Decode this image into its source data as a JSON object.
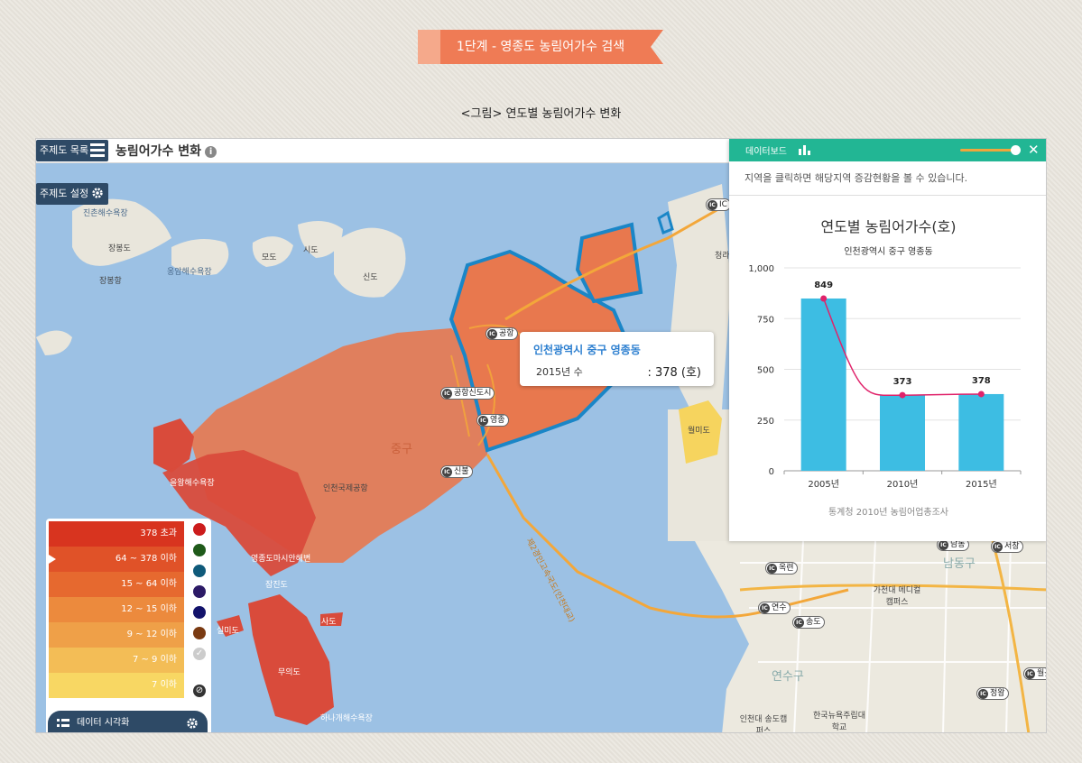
{
  "banner": {
    "label": "1단계 - 영종도 농림어가수 검색"
  },
  "figure_caption": "<그림> 연도별 농림어가수 변화",
  "toolbar": {
    "theme_list_label": "주제도 목록",
    "theme_settings_label": "주제도 설정",
    "map_title": "농림어가수 변화",
    "info_label": "i"
  },
  "map_labels": {
    "beach_jinchon": "진촌해수욕장",
    "jangbongdo": "장봉도",
    "jangbong_port": "장봉항",
    "ongam_beach": "옹암해수욕장",
    "modo": "모도",
    "sido": "시도",
    "sindo": "신도",
    "jung_gu": "중구",
    "airport": "인천국제공항",
    "wolmido": "월미도",
    "cheongna": "청라",
    "namdong_gu": "남동구",
    "yeonsu_gu": "연수구",
    "muuido": "무의도",
    "jamjindo": "잠진도",
    "yeongjong_beach": "을왕해수욕장",
    "yeongjong_marina": "영종도마시안해변",
    "silmido": "실미도",
    "sanmido": "사도",
    "hanagae": "하나개해수욕장",
    "bridge": "제2경인고속국도(인천대교)",
    "gachondae": "가천대 메디컬캠퍼스",
    "incheon_univ": "인천대 송도캠퍼스",
    "ku_college": "한국뉴욕주립대학교"
  },
  "ic_badges": [
    "IC",
    "공항",
    "공항신도시",
    "영종",
    "신불",
    "옥련",
    "연수",
    "송도",
    "남동",
    "서창",
    "월곶",
    "정왕"
  ],
  "tooltip": {
    "region": "인천광역시 중구 영종동",
    "key": "2015년 수",
    "value": ": 378 (호)"
  },
  "legend": {
    "rows": [
      {
        "label": "378 초과",
        "color": "#d8341f"
      },
      {
        "label": "64 ~ 378 이하",
        "color": "#e05228"
      },
      {
        "label": "15 ~ 64 이하",
        "color": "#e6692f"
      },
      {
        "label": "12 ~ 15 이하",
        "color": "#ec8a3d"
      },
      {
        "label": "9 ~ 12 이하",
        "color": "#efa048"
      },
      {
        "label": "7 ~ 9 이하",
        "color": "#f3bd56"
      },
      {
        "label": "7 이하",
        "color": "#f8d763"
      }
    ],
    "swatches": [
      "#cc1c1c",
      "#1f5a1a",
      "#0f5a7a",
      "#2c1a66",
      "#12126b",
      "#7a3a12"
    ],
    "check_glyph": "✓",
    "no_glyph": "⊘"
  },
  "viz_button": {
    "label": "데이터 시각화"
  },
  "dashboard": {
    "title": "데이터보드",
    "close_glyph": "✕",
    "note": "지역을 클릭하면 해당지역 증감현황을 볼 수 있습니다.",
    "source": "통계청 2010년 농림어업총조사"
  },
  "colors": {
    "accent": "#22b694",
    "bar": "#3dbde3",
    "line": "#e0226a",
    "region_highlight": "#1a86c7"
  },
  "chart_data": {
    "type": "bar",
    "title": "연도별 농림어가수(호)",
    "subtitle": "인천광역시 중구 영종동",
    "categories": [
      "2005년",
      "2010년",
      "2015년"
    ],
    "series": [
      {
        "values": [
          849,
          373,
          378
        ]
      }
    ],
    "ylim": [
      0,
      1000
    ],
    "yticks": [
      "0",
      "250",
      "500",
      "750",
      "1,000"
    ],
    "grid": true,
    "legend": "none"
  }
}
